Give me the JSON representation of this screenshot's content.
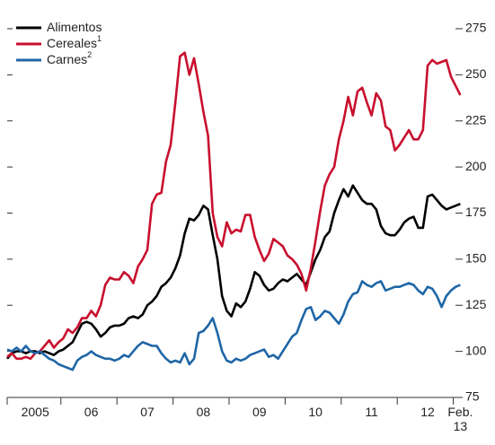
{
  "chart_data": {
    "type": "line",
    "categories": [
      null,
      null,
      null,
      null,
      null,
      null,
      "2005",
      null,
      null,
      null,
      null,
      null,
      null,
      null,
      null,
      null,
      null,
      null,
      "06",
      null,
      null,
      null,
      null,
      null,
      null,
      null,
      null,
      null,
      null,
      null,
      "07",
      null,
      null,
      null,
      null,
      null,
      null,
      null,
      null,
      null,
      null,
      null,
      "08",
      null,
      null,
      null,
      null,
      null,
      null,
      null,
      null,
      null,
      null,
      null,
      "09",
      null,
      null,
      null,
      null,
      null,
      null,
      null,
      null,
      null,
      null,
      null,
      "10",
      null,
      null,
      null,
      null,
      null,
      null,
      null,
      null,
      null,
      null,
      null,
      "11",
      null,
      null,
      null,
      null,
      null,
      null,
      null,
      null,
      null,
      null,
      null,
      "12",
      null,
      null,
      null,
      null,
      null,
      null,
      "Feb. 13"
    ],
    "series": [
      {
        "name": "Alimentos",
        "color": "#000000",
        "values": [
          96,
          99,
          100,
          100,
          99,
          100,
          100,
          99,
          100,
          99,
          98,
          100,
          101,
          103,
          105,
          110,
          115,
          116,
          115,
          112,
          108,
          110,
          113,
          114,
          114,
          115,
          118,
          119,
          118,
          120,
          125,
          127,
          130,
          135,
          137,
          140,
          145,
          152,
          164,
          172,
          171,
          174,
          179,
          177,
          163,
          150,
          130,
          122,
          119,
          126,
          124,
          127,
          134,
          143,
          141,
          136,
          133,
          134,
          137,
          139,
          138,
          140,
          142,
          139,
          136,
          143,
          150,
          155,
          162,
          165,
          175,
          182,
          188,
          184,
          190,
          186,
          182,
          180,
          180,
          177,
          168,
          164,
          163,
          163,
          166,
          170,
          172,
          173,
          167,
          167,
          184,
          185,
          182,
          179,
          177,
          178,
          179,
          180
        ]
      },
      {
        "name": "Cereales",
        "footnote": "1",
        "color": "#c8102e",
        "values": [
          97,
          99,
          96,
          96,
          97,
          96,
          99,
          100,
          103,
          106,
          102,
          105,
          107,
          112,
          110,
          113,
          118,
          118,
          122,
          119,
          125,
          136,
          140,
          139,
          139,
          143,
          141,
          137,
          146,
          150,
          155,
          180,
          185,
          186,
          203,
          212,
          235,
          260,
          262,
          250,
          259,
          245,
          230,
          217,
          175,
          162,
          157,
          170,
          164,
          166,
          165,
          174,
          174,
          162,
          155,
          149,
          153,
          161,
          159,
          157,
          152,
          150,
          147,
          142,
          133,
          145,
          160,
          176,
          190,
          196,
          200,
          215,
          225,
          238,
          228,
          241,
          243,
          235,
          228,
          240,
          236,
          222,
          220,
          209,
          212,
          216,
          220,
          215,
          215,
          220,
          255,
          258,
          256,
          257,
          258,
          249,
          244,
          239
        ]
      },
      {
        "name": "Carnes",
        "footnote": "2",
        "color": "#1f66a6",
        "values": [
          101,
          100,
          102,
          100,
          103,
          100,
          99,
          100,
          98,
          96,
          95,
          93,
          92,
          91,
          90,
          95,
          97,
          98,
          100,
          98,
          97,
          96,
          96,
          95,
          96,
          98,
          97,
          100,
          103,
          105,
          104,
          103,
          103,
          99,
          96,
          94,
          95,
          94,
          99,
          93,
          96,
          110,
          111,
          114,
          118,
          110,
          100,
          95,
          94,
          96,
          95,
          96,
          98,
          99,
          100,
          101,
          97,
          98,
          96,
          100,
          104,
          108,
          110,
          117,
          123,
          124,
          117,
          119,
          122,
          121,
          118,
          115,
          120,
          127,
          131,
          132,
          138,
          136,
          135,
          137,
          138,
          133,
          134,
          135,
          135,
          136,
          137,
          136,
          133,
          131,
          135,
          134,
          130,
          124,
          130,
          133,
          135,
          136
        ]
      }
    ],
    "ylim": [
      75,
      275
    ],
    "yticks": [
      75,
      100,
      125,
      150,
      175,
      200,
      225,
      250,
      275
    ],
    "grid": false,
    "legend": "top-left"
  }
}
